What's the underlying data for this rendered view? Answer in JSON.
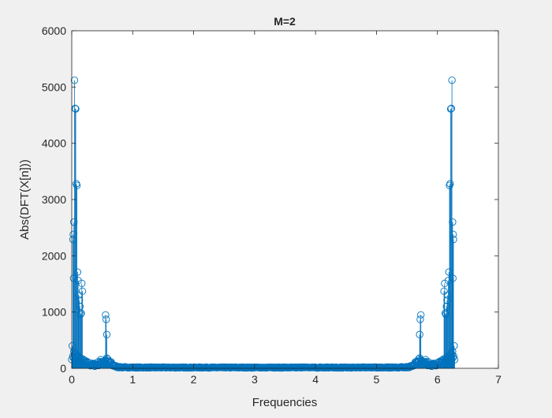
{
  "chart_data": {
    "type": "stem",
    "title": "M=2",
    "xlabel": "Frequencies",
    "ylabel": "Abs(DFT(X[n]))",
    "xlim": [
      0,
      7
    ],
    "ylim": [
      0,
      6000
    ],
    "x_ticks": [
      "0",
      "1",
      "2",
      "3",
      "4",
      "5",
      "6",
      "7"
    ],
    "y_ticks": [
      "0",
      "1000",
      "2000",
      "3000",
      "4000",
      "5000",
      "6000"
    ],
    "grid": false,
    "legend": "none",
    "marker": "circle",
    "series_color": "#0072BD",
    "x_range": [
      0,
      6.283
    ],
    "sample_count": 700,
    "symmetric_about": 3.1416,
    "peaks": [
      {
        "x": 0.045,
        "y": 5120
      },
      {
        "x": 0.055,
        "y": 4620
      },
      {
        "x": 0.065,
        "y": 4610
      },
      {
        "x": 0.035,
        "y": 2600
      },
      {
        "x": 0.025,
        "y": 2380
      },
      {
        "x": 0.075,
        "y": 3280
      },
      {
        "x": 0.085,
        "y": 3250
      },
      {
        "x": 0.02,
        "y": 2290
      },
      {
        "x": 0.095,
        "y": 1710
      },
      {
        "x": 0.03,
        "y": 1600
      },
      {
        "x": 0.105,
        "y": 1560
      },
      {
        "x": 0.115,
        "y": 1300
      },
      {
        "x": 0.125,
        "y": 1210
      },
      {
        "x": 0.135,
        "y": 1100
      },
      {
        "x": 0.145,
        "y": 960
      },
      {
        "x": 0.155,
        "y": 980
      },
      {
        "x": 0.165,
        "y": 1510
      },
      {
        "x": 0.175,
        "y": 1370
      },
      {
        "x": 0.555,
        "y": 950
      },
      {
        "x": 0.565,
        "y": 870
      },
      {
        "x": 0.575,
        "y": 600
      }
    ]
  }
}
